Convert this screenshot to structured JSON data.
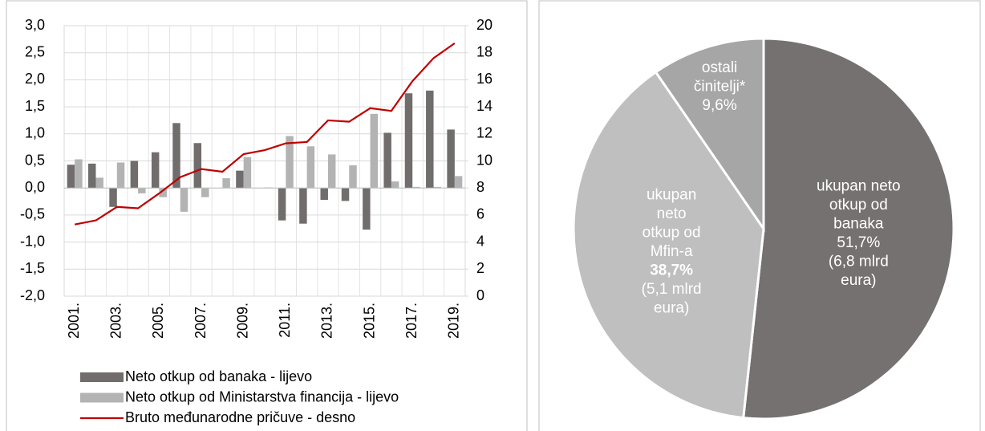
{
  "chart_data": [
    {
      "type": "bar_line",
      "categories": [
        "2001.",
        null,
        "2003.",
        null,
        "2005.",
        null,
        "2007.",
        null,
        "2009.",
        null,
        "2011.",
        null,
        "2013.",
        null,
        "2015.",
        null,
        "2017.",
        null,
        "2019."
      ],
      "series": [
        {
          "name": "Neto otkup od banaka - lijevo",
          "color": "#716d6d",
          "kind": "bar",
          "values": [
            0.43,
            0.45,
            -0.35,
            0.5,
            0.66,
            1.2,
            0.83,
            0,
            0.32,
            0,
            -0.6,
            -0.66,
            -0.22,
            -0.24,
            -0.77,
            1.02,
            1.75,
            1.8,
            1.08
          ]
        },
        {
          "name": "Neto otkup od Ministarstva financija - lijevo",
          "color": "#b3b3b3",
          "kind": "bar",
          "values": [
            0.53,
            0.19,
            0.47,
            -0.1,
            -0.17,
            -0.44,
            -0.17,
            0.18,
            0.57,
            0.01,
            0.96,
            0.77,
            0.62,
            0.42,
            1.37,
            0.12,
            0.02,
            0.02,
            0.22
          ]
        },
        {
          "name": "Bruto međunarodne pričuve - desno",
          "color": "#c00000",
          "kind": "line",
          "axis": "y2",
          "values": [
            5.3,
            5.6,
            6.6,
            6.5,
            7.6,
            8.8,
            9.4,
            9.2,
            10.5,
            10.8,
            11.3,
            11.4,
            13.0,
            12.9,
            13.9,
            13.7,
            15.9,
            17.6,
            18.7
          ]
        }
      ],
      "ylim": [
        -2,
        3
      ],
      "yticks": [
        {
          "value": -2,
          "label": "-2,0"
        },
        {
          "value": -1.5,
          "label": "-1,5"
        },
        {
          "value": -1,
          "label": "-1,0"
        },
        {
          "value": -0.5,
          "label": "-0,5"
        },
        {
          "value": 0,
          "label": "0,0"
        },
        {
          "value": 0.5,
          "label": "0,5"
        },
        {
          "value": 1,
          "label": "1,0"
        },
        {
          "value": 1.5,
          "label": "1,5"
        },
        {
          "value": 2,
          "label": "2,0"
        },
        {
          "value": 2.5,
          "label": "2,5"
        },
        {
          "value": 3,
          "label": "3,0"
        }
      ],
      "y2lim": [
        0,
        20
      ],
      "y2ticks": [
        0,
        2,
        4,
        6,
        8,
        10,
        12,
        14,
        16,
        18,
        20
      ],
      "grid": true,
      "legend": "bottom"
    },
    {
      "type": "pie",
      "categories": [
        [
          "ukupan neto",
          "otkup od",
          "banaka"
        ],
        [
          "ukupan",
          "neto",
          "otkup od",
          "Mfin-a"
        ],
        [
          "ostali",
          "činitelji*"
        ]
      ],
      "values": [
        51.7,
        38.7,
        9.6
      ],
      "value_labels": [
        "51,7%",
        "38,7%",
        "9,6%"
      ],
      "notes": [
        [
          "(6,8 mlrd",
          "eura)"
        ],
        [
          "(5,1 mlrd",
          "eura)"
        ],
        null
      ],
      "colors": [
        "#767171",
        "#bfbfbf",
        "#a6a6a6"
      ]
    }
  ]
}
